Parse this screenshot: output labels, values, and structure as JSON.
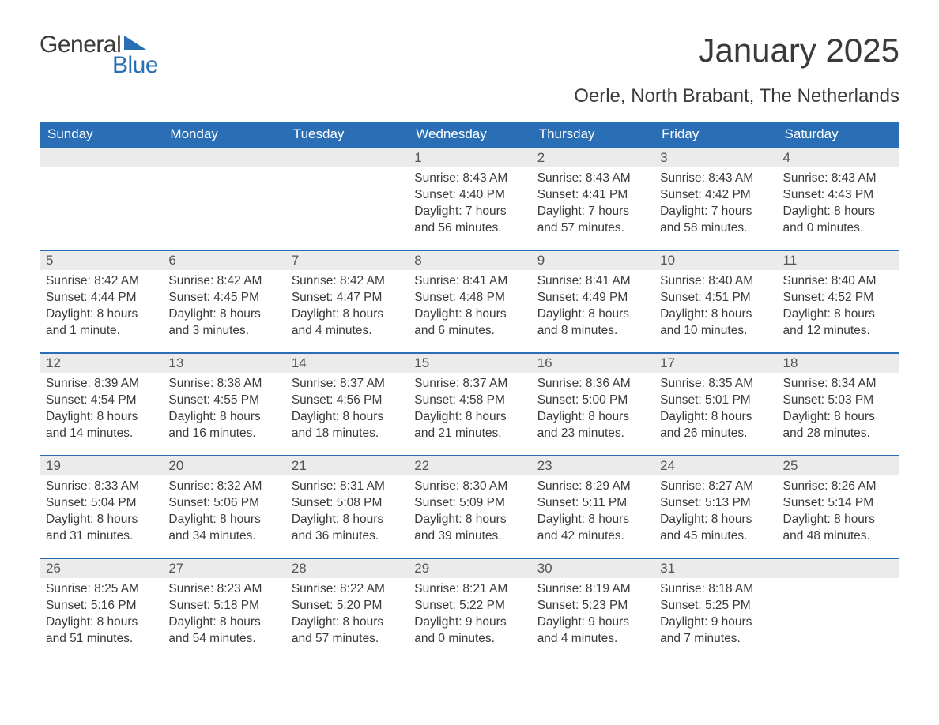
{
  "logo": {
    "word1": "General",
    "word2": "Blue"
  },
  "title": "January 2025",
  "subtitle": "Oerle, North Brabant, The Netherlands",
  "colors": {
    "accent": "#2a6fb5",
    "header_text": "#ffffff",
    "day_row_bg": "#ebebeb",
    "body_text": "#3a3a3a",
    "background": "#ffffff"
  },
  "typography": {
    "title_fontsize": 42,
    "subtitle_fontsize": 24,
    "header_fontsize": 17,
    "cell_fontsize": 15.5,
    "font_family": "Arial"
  },
  "day_headers": [
    "Sunday",
    "Monday",
    "Tuesday",
    "Wednesday",
    "Thursday",
    "Friday",
    "Saturday"
  ],
  "weeks": [
    [
      null,
      null,
      null,
      {
        "day": "1",
        "sunrise": "Sunrise: 8:43 AM",
        "sunset": "Sunset: 4:40 PM",
        "dl1": "Daylight: 7 hours",
        "dl2": "and 56 minutes."
      },
      {
        "day": "2",
        "sunrise": "Sunrise: 8:43 AM",
        "sunset": "Sunset: 4:41 PM",
        "dl1": "Daylight: 7 hours",
        "dl2": "and 57 minutes."
      },
      {
        "day": "3",
        "sunrise": "Sunrise: 8:43 AM",
        "sunset": "Sunset: 4:42 PM",
        "dl1": "Daylight: 7 hours",
        "dl2": "and 58 minutes."
      },
      {
        "day": "4",
        "sunrise": "Sunrise: 8:43 AM",
        "sunset": "Sunset: 4:43 PM",
        "dl1": "Daylight: 8 hours",
        "dl2": "and 0 minutes."
      }
    ],
    [
      {
        "day": "5",
        "sunrise": "Sunrise: 8:42 AM",
        "sunset": "Sunset: 4:44 PM",
        "dl1": "Daylight: 8 hours",
        "dl2": "and 1 minute."
      },
      {
        "day": "6",
        "sunrise": "Sunrise: 8:42 AM",
        "sunset": "Sunset: 4:45 PM",
        "dl1": "Daylight: 8 hours",
        "dl2": "and 3 minutes."
      },
      {
        "day": "7",
        "sunrise": "Sunrise: 8:42 AM",
        "sunset": "Sunset: 4:47 PM",
        "dl1": "Daylight: 8 hours",
        "dl2": "and 4 minutes."
      },
      {
        "day": "8",
        "sunrise": "Sunrise: 8:41 AM",
        "sunset": "Sunset: 4:48 PM",
        "dl1": "Daylight: 8 hours",
        "dl2": "and 6 minutes."
      },
      {
        "day": "9",
        "sunrise": "Sunrise: 8:41 AM",
        "sunset": "Sunset: 4:49 PM",
        "dl1": "Daylight: 8 hours",
        "dl2": "and 8 minutes."
      },
      {
        "day": "10",
        "sunrise": "Sunrise: 8:40 AM",
        "sunset": "Sunset: 4:51 PM",
        "dl1": "Daylight: 8 hours",
        "dl2": "and 10 minutes."
      },
      {
        "day": "11",
        "sunrise": "Sunrise: 8:40 AM",
        "sunset": "Sunset: 4:52 PM",
        "dl1": "Daylight: 8 hours",
        "dl2": "and 12 minutes."
      }
    ],
    [
      {
        "day": "12",
        "sunrise": "Sunrise: 8:39 AM",
        "sunset": "Sunset: 4:54 PM",
        "dl1": "Daylight: 8 hours",
        "dl2": "and 14 minutes."
      },
      {
        "day": "13",
        "sunrise": "Sunrise: 8:38 AM",
        "sunset": "Sunset: 4:55 PM",
        "dl1": "Daylight: 8 hours",
        "dl2": "and 16 minutes."
      },
      {
        "day": "14",
        "sunrise": "Sunrise: 8:37 AM",
        "sunset": "Sunset: 4:56 PM",
        "dl1": "Daylight: 8 hours",
        "dl2": "and 18 minutes."
      },
      {
        "day": "15",
        "sunrise": "Sunrise: 8:37 AM",
        "sunset": "Sunset: 4:58 PM",
        "dl1": "Daylight: 8 hours",
        "dl2": "and 21 minutes."
      },
      {
        "day": "16",
        "sunrise": "Sunrise: 8:36 AM",
        "sunset": "Sunset: 5:00 PM",
        "dl1": "Daylight: 8 hours",
        "dl2": "and 23 minutes."
      },
      {
        "day": "17",
        "sunrise": "Sunrise: 8:35 AM",
        "sunset": "Sunset: 5:01 PM",
        "dl1": "Daylight: 8 hours",
        "dl2": "and 26 minutes."
      },
      {
        "day": "18",
        "sunrise": "Sunrise: 8:34 AM",
        "sunset": "Sunset: 5:03 PM",
        "dl1": "Daylight: 8 hours",
        "dl2": "and 28 minutes."
      }
    ],
    [
      {
        "day": "19",
        "sunrise": "Sunrise: 8:33 AM",
        "sunset": "Sunset: 5:04 PM",
        "dl1": "Daylight: 8 hours",
        "dl2": "and 31 minutes."
      },
      {
        "day": "20",
        "sunrise": "Sunrise: 8:32 AM",
        "sunset": "Sunset: 5:06 PM",
        "dl1": "Daylight: 8 hours",
        "dl2": "and 34 minutes."
      },
      {
        "day": "21",
        "sunrise": "Sunrise: 8:31 AM",
        "sunset": "Sunset: 5:08 PM",
        "dl1": "Daylight: 8 hours",
        "dl2": "and 36 minutes."
      },
      {
        "day": "22",
        "sunrise": "Sunrise: 8:30 AM",
        "sunset": "Sunset: 5:09 PM",
        "dl1": "Daylight: 8 hours",
        "dl2": "and 39 minutes."
      },
      {
        "day": "23",
        "sunrise": "Sunrise: 8:29 AM",
        "sunset": "Sunset: 5:11 PM",
        "dl1": "Daylight: 8 hours",
        "dl2": "and 42 minutes."
      },
      {
        "day": "24",
        "sunrise": "Sunrise: 8:27 AM",
        "sunset": "Sunset: 5:13 PM",
        "dl1": "Daylight: 8 hours",
        "dl2": "and 45 minutes."
      },
      {
        "day": "25",
        "sunrise": "Sunrise: 8:26 AM",
        "sunset": "Sunset: 5:14 PM",
        "dl1": "Daylight: 8 hours",
        "dl2": "and 48 minutes."
      }
    ],
    [
      {
        "day": "26",
        "sunrise": "Sunrise: 8:25 AM",
        "sunset": "Sunset: 5:16 PM",
        "dl1": "Daylight: 8 hours",
        "dl2": "and 51 minutes."
      },
      {
        "day": "27",
        "sunrise": "Sunrise: 8:23 AM",
        "sunset": "Sunset: 5:18 PM",
        "dl1": "Daylight: 8 hours",
        "dl2": "and 54 minutes."
      },
      {
        "day": "28",
        "sunrise": "Sunrise: 8:22 AM",
        "sunset": "Sunset: 5:20 PM",
        "dl1": "Daylight: 8 hours",
        "dl2": "and 57 minutes."
      },
      {
        "day": "29",
        "sunrise": "Sunrise: 8:21 AM",
        "sunset": "Sunset: 5:22 PM",
        "dl1": "Daylight: 9 hours",
        "dl2": "and 0 minutes."
      },
      {
        "day": "30",
        "sunrise": "Sunrise: 8:19 AM",
        "sunset": "Sunset: 5:23 PM",
        "dl1": "Daylight: 9 hours",
        "dl2": "and 4 minutes."
      },
      {
        "day": "31",
        "sunrise": "Sunrise: 8:18 AM",
        "sunset": "Sunset: 5:25 PM",
        "dl1": "Daylight: 9 hours",
        "dl2": "and 7 minutes."
      },
      null
    ]
  ]
}
